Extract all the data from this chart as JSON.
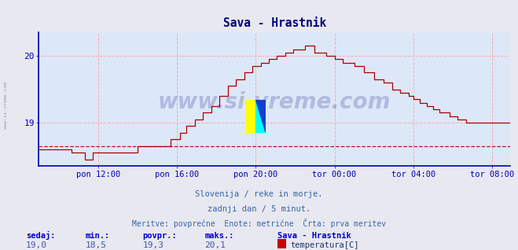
{
  "title": "Sava - Hrastnik",
  "title_color": "#000080",
  "bg_color": "#e8e8f0",
  "plot_bg_color": "#dce8f8",
  "line_color": "#aa0000",
  "axis_color": "#0000bb",
  "grid_color": "#ffaaaa",
  "ylim": [
    18.35,
    20.35
  ],
  "yticks": [
    19.0,
    20.0
  ],
  "xtick_labels": [
    "pon 12:00",
    "pon 16:00",
    "pon 20:00",
    "tor 00:00",
    "tor 04:00",
    "tor 08:00"
  ],
  "watermark": "www.si-vreme.com",
  "watermark_color": "#1a1a8c",
  "watermark_alpha": 0.22,
  "left_label": "www.si-vreme.com",
  "subtitle1": "Slovenija / reke in morje.",
  "subtitle2": "zadnji dan / 5 minut.",
  "subtitle3": "Meritve: povprečne  Enote: metrične  Črta: prva meritev",
  "subtitle_color": "#3366aa",
  "footer_label_color": "#0000cc",
  "sedaj": "19,0",
  "min_val": "18,5",
  "povpr": "19,3",
  "maks": "20,1",
  "legend_title": "Sava - Hrastnik",
  "legend_label": "temperatura[C]",
  "legend_color": "#cc0000",
  "min_line_value": 18.65,
  "n_points": 288,
  "xtick_positions": [
    36,
    84,
    132,
    180,
    228,
    276
  ]
}
